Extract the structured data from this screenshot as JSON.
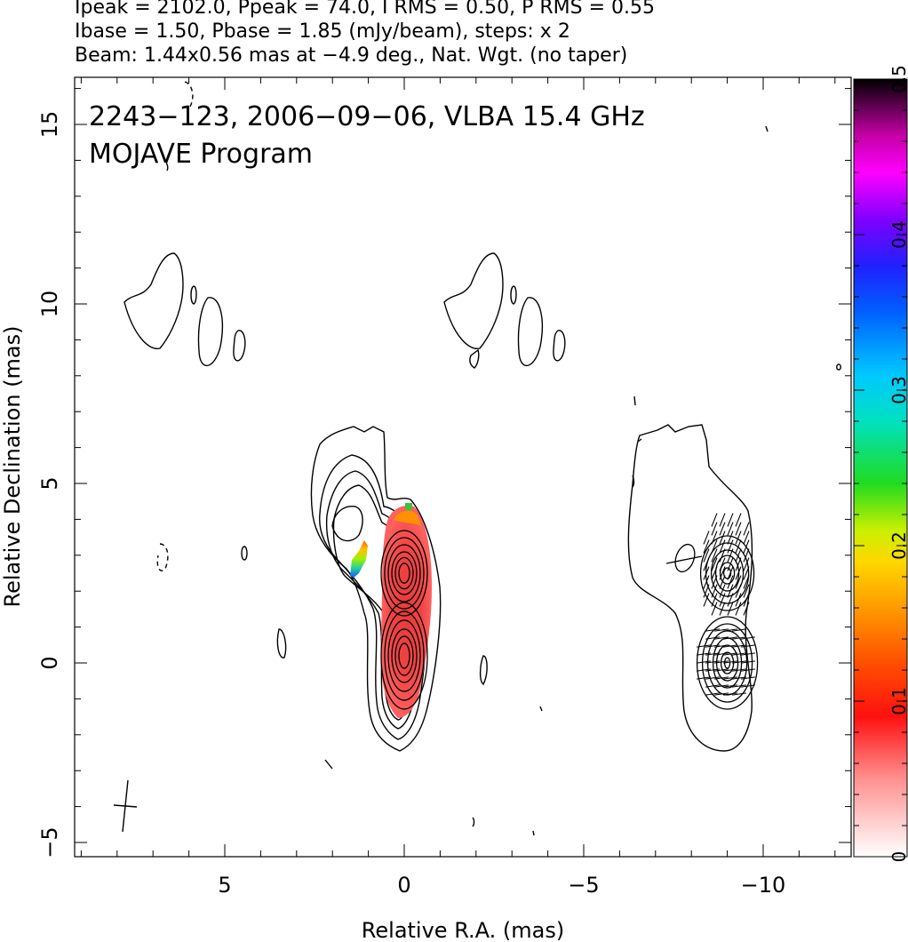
{
  "header": {
    "line1": "Ipeak = 2102.0, Ppeak = 74.0, I RMS = 0.50, P RMS = 0.55",
    "line2": "Ibase = 1.50, Pbase = 1.85 (mJy/beam), steps: x 2",
    "line3": "Beam: 1.44x0.56 mas at −4.9 deg., Nat. Wgt. (no taper)"
  },
  "chart_data": {
    "type": "contour",
    "title": "2243−123, 2006−09−06, VLBA 15.4 GHz",
    "subtitle": "MOJAVE Program",
    "xlabel": "Relative R.A. (mas)",
    "ylabel": "Relative Declination (mas)",
    "xlim": [
      9.2,
      -12.5
    ],
    "ylim": [
      -5.5,
      16.4
    ],
    "x_ticks": [
      5,
      0,
      -5,
      -10
    ],
    "x_tick_labels": [
      "5",
      "0",
      "−5",
      "−10"
    ],
    "y_ticks": [
      -5,
      0,
      5,
      10,
      15
    ],
    "y_tick_labels": [
      "−5",
      "0",
      "5",
      "10",
      "15"
    ],
    "colorbar": {
      "range": [
        0,
        0.5
      ],
      "ticks": [
        0,
        0.1,
        0.2,
        0.3,
        0.4,
        0.5
      ],
      "tick_labels": [
        "0",
        "0.1",
        "0.2",
        "0.3",
        "0.4",
        "0.5"
      ]
    },
    "panels": [
      {
        "name": "left",
        "x_offset": 0,
        "components": [
          {
            "x": 0.0,
            "y": 0.2
          },
          {
            "x": 0.0,
            "y": 2.5
          },
          {
            "x": 1.9,
            "y": 3.8
          }
        ]
      },
      {
        "name": "right",
        "x_offset": -9.0,
        "components": [
          {
            "x": 0.0,
            "y": 0.0
          },
          {
            "x": 0.0,
            "y": 2.5
          }
        ]
      }
    ],
    "contour_levels_mJy": [
      1.5,
      3,
      6,
      12,
      24,
      48,
      96,
      192,
      384,
      768,
      1536
    ],
    "beam": {
      "major_mas": 1.44,
      "minor_mas": 0.56,
      "pa_deg": -4.9
    }
  }
}
